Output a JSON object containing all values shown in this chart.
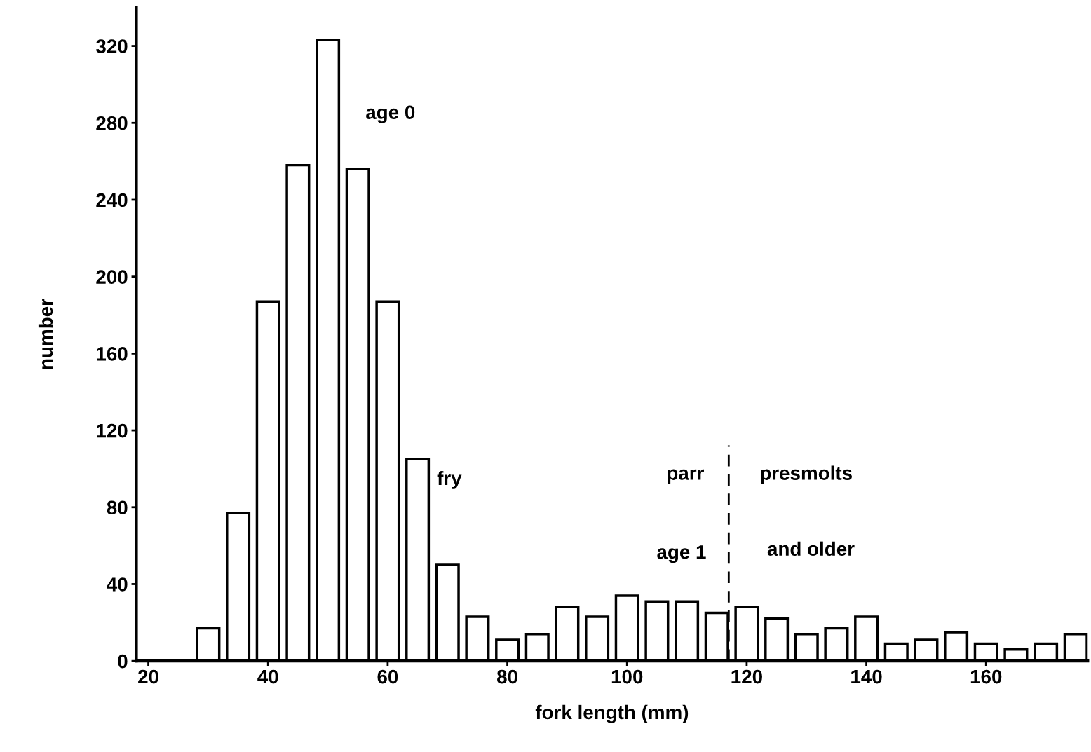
{
  "chart_data": {
    "type": "bar",
    "xlabel": "fork length (mm)",
    "ylabel": "number",
    "x": [
      30,
      35,
      40,
      45,
      50,
      55,
      60,
      65,
      70,
      75,
      80,
      85,
      90,
      95,
      100,
      105,
      110,
      115,
      120,
      125,
      130,
      135,
      140,
      145,
      150,
      155,
      160,
      165,
      170,
      175
    ],
    "values": [
      17,
      77,
      187,
      258,
      323,
      256,
      187,
      105,
      50,
      23,
      11,
      14,
      28,
      23,
      34,
      31,
      31,
      25,
      28,
      22,
      14,
      17,
      23,
      9,
      11,
      15,
      9,
      6,
      9,
      14
    ],
    "color": "#ffffff",
    "xlim": [
      18,
      177
    ],
    "xticks": [
      20,
      40,
      60,
      80,
      100,
      120,
      140,
      160
    ],
    "ylim": [
      0,
      340
    ],
    "yticks": [
      0,
      40,
      80,
      120,
      160,
      200,
      240,
      280,
      320
    ],
    "grid": false,
    "ref_lines": [
      {
        "axis": "x",
        "value": 117,
        "label": null,
        "line_style": "dashed",
        "color": "#000000"
      }
    ],
    "annotations": [
      "age 0",
      "fry",
      "parr",
      "presmolts",
      "age 1",
      "and older"
    ]
  }
}
